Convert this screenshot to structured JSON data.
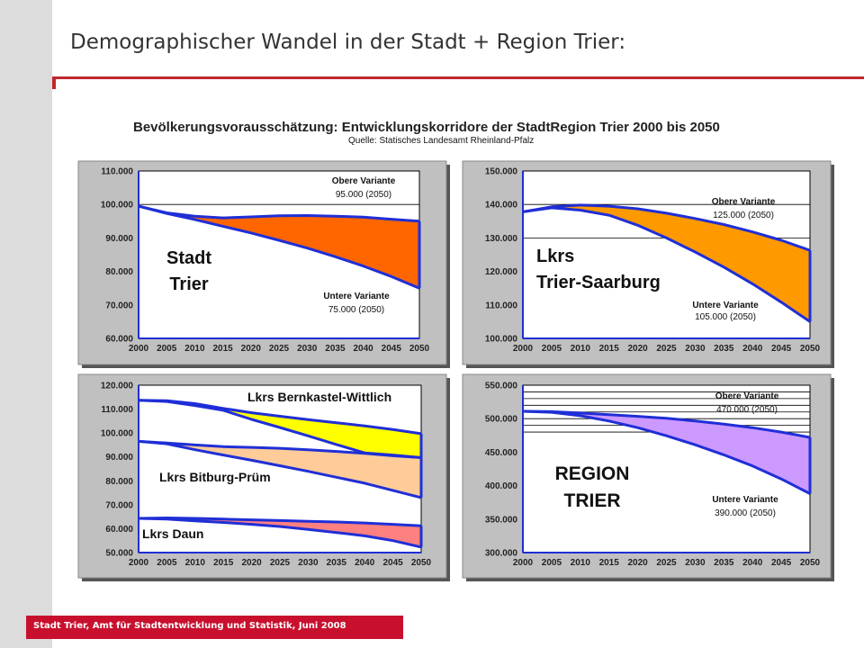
{
  "header": {
    "title": "Demographischer Wandel in der Stadt + Region Trier:"
  },
  "figure": {
    "title": "Bevölkerungsvorausschätzung:  Entwicklungskorridore der StadtRegion Trier 2000 bis 2050",
    "source": "Quelle: Statisches Landesamt Rheinland-Pfalz"
  },
  "footer": {
    "text": "Stadt Trier, Amt für Stadtentwicklung und Statistik, Juni 2008"
  },
  "colors": {
    "accent": "#c0272d",
    "footer": "#c8102e",
    "line": "#1f2fd6",
    "trier": "#ff6600",
    "trier_saarburg": "#ff9900",
    "bernkastel": "#ffff00",
    "bitburg": "#ffcc99",
    "daun": "#ff8080",
    "region": "#cc99ff"
  },
  "chart_data": [
    {
      "type": "area",
      "name": "stadt-trier",
      "x": [
        2000,
        2005,
        2010,
        2015,
        2020,
        2025,
        2030,
        2035,
        2040,
        2045,
        2050
      ],
      "x_labels": [
        "2000",
        "2005",
        "2010",
        "2015",
        "2020",
        "2025",
        "2030",
        "2035",
        "2040",
        "2045",
        "2050"
      ],
      "ylim": [
        60000,
        110000
      ],
      "y_ticks": [
        60000,
        70000,
        80000,
        90000,
        100000,
        110000
      ],
      "y_tick_labels": [
        "60.000",
        "70.000",
        "80.000",
        "90.000",
        "100.000",
        "110.000"
      ],
      "gridlines": [
        100000
      ],
      "corridors": [
        {
          "upper": [
            99500,
            97500,
            96500,
            96000,
            96300,
            96600,
            96700,
            96500,
            96200,
            95600,
            95000
          ],
          "lower": [
            99500,
            97300,
            95500,
            93500,
            91500,
            89300,
            87000,
            84400,
            81600,
            78500,
            75000
          ],
          "fill": "#ff6600"
        }
      ],
      "region_label": [
        "Stadt",
        "Trier"
      ],
      "annotations": [
        {
          "lines": [
            "Obere Variante",
            "95.000 (2050)"
          ]
        },
        {
          "lines": [
            "Untere Variante",
            "75.000 (2050)"
          ]
        }
      ]
    },
    {
      "type": "area",
      "name": "lkrs-trier-saarburg",
      "x": [
        2000,
        2005,
        2010,
        2015,
        2020,
        2025,
        2030,
        2035,
        2040,
        2045,
        2050
      ],
      "x_labels": [
        "2000",
        "2005",
        "2010",
        "2015",
        "2020",
        "2025",
        "2030",
        "2035",
        "2040",
        "2045",
        "2050"
      ],
      "ylim": [
        100000,
        150000
      ],
      "y_ticks": [
        100000,
        110000,
        120000,
        130000,
        140000,
        150000
      ],
      "y_tick_labels": [
        "100.000",
        "110.000",
        "120.000",
        "130.000",
        "140.000",
        "150.000"
      ],
      "gridlines": [
        140000,
        130000
      ],
      "corridors": [
        {
          "upper": [
            137800,
            139300,
            139800,
            139500,
            138700,
            137400,
            135800,
            134000,
            131800,
            129300,
            126300
          ],
          "lower": [
            137800,
            139000,
            138300,
            136800,
            133800,
            130000,
            125800,
            121300,
            116300,
            110800,
            105000
          ],
          "fill": "#ff9900"
        }
      ],
      "region_label": [
        "Lkrs",
        "Trier-Saarburg"
      ],
      "annotations": [
        {
          "lines": [
            "Obere Variante",
            "125.000 (2050)"
          ]
        },
        {
          "lines": [
            "Untere Variante",
            "105.000 (2050)"
          ]
        }
      ]
    },
    {
      "type": "area",
      "name": "bernkastel-bitburg-daun",
      "x": [
        2000,
        2005,
        2010,
        2015,
        2020,
        2025,
        2030,
        2035,
        2040,
        2045,
        2050
      ],
      "x_labels": [
        "2000",
        "2005",
        "2010",
        "2015",
        "2020",
        "2025",
        "2030",
        "2035",
        "2040",
        "2045",
        "2050"
      ],
      "ylim": [
        50000,
        120000
      ],
      "y_ticks": [
        50000,
        60000,
        70000,
        80000,
        90000,
        100000,
        110000,
        120000
      ],
      "y_tick_labels": [
        "50.000",
        "60.000",
        "70.000",
        "80.000",
        "90.000",
        "100.000",
        "110.000",
        "120.000"
      ],
      "gridlines": [],
      "corridors": [
        {
          "upper": [
            113700,
            113500,
            112300,
            110300,
            108500,
            107000,
            105600,
            104300,
            103000,
            101500,
            99700
          ],
          "lower": [
            113700,
            113200,
            111500,
            109500,
            105700,
            102300,
            98800,
            95200,
            91700,
            90800,
            89700
          ],
          "fill": "#ffff00"
        },
        {
          "upper": [
            96500,
            95800,
            95000,
            94300,
            94000,
            93600,
            93000,
            92300,
            91500,
            90500,
            89700
          ],
          "lower": [
            96500,
            95500,
            93000,
            90800,
            88600,
            86300,
            84000,
            81500,
            79000,
            76000,
            73000
          ],
          "fill": "#ffcc99"
        },
        {
          "upper": [
            64300,
            64500,
            64300,
            64000,
            63700,
            63400,
            63100,
            62800,
            62400,
            61800,
            61200
          ],
          "lower": [
            64300,
            64000,
            63300,
            62600,
            61800,
            60900,
            59700,
            58400,
            57000,
            55000,
            52300
          ],
          "fill": "#ff8080"
        }
      ],
      "region_labels": [
        {
          "text": "Lkrs Bernkastel-Wittlich"
        },
        {
          "text": "Lkrs Bitburg-Prüm"
        },
        {
          "text": "Lkrs Daun"
        }
      ]
    },
    {
      "type": "area",
      "name": "region-trier",
      "x": [
        2000,
        2005,
        2010,
        2015,
        2020,
        2025,
        2030,
        2035,
        2040,
        2045,
        2050
      ],
      "x_labels": [
        "2000",
        "2005",
        "2010",
        "2015",
        "2020",
        "2025",
        "2030",
        "2035",
        "2040",
        "2045",
        "2050"
      ],
      "ylim": [
        300000,
        550000
      ],
      "y_ticks": [
        300000,
        350000,
        400000,
        450000,
        500000,
        550000
      ],
      "y_tick_labels": [
        "300.000",
        "350.000",
        "400.000",
        "450.000",
        "500.000",
        "550.000"
      ],
      "gridlines": [
        540000,
        530000,
        520000,
        510000,
        500000,
        490000,
        480000
      ],
      "corridors": [
        {
          "upper": [
            511000,
            510500,
            508500,
            506000,
            503500,
            500500,
            496500,
            492000,
            486500,
            480000,
            472000
          ],
          "lower": [
            511000,
            509500,
            504500,
            496500,
            486500,
            474500,
            461000,
            446000,
            429500,
            410000,
            388000
          ],
          "fill": "#cc99ff"
        }
      ],
      "region_label": [
        "REGION",
        "TRIER"
      ],
      "annotations": [
        {
          "lines": [
            "Obere Variante",
            "470.000 (2050)"
          ]
        },
        {
          "lines": [
            "Untere Variante",
            "390.000 (2050)"
          ]
        }
      ]
    }
  ]
}
